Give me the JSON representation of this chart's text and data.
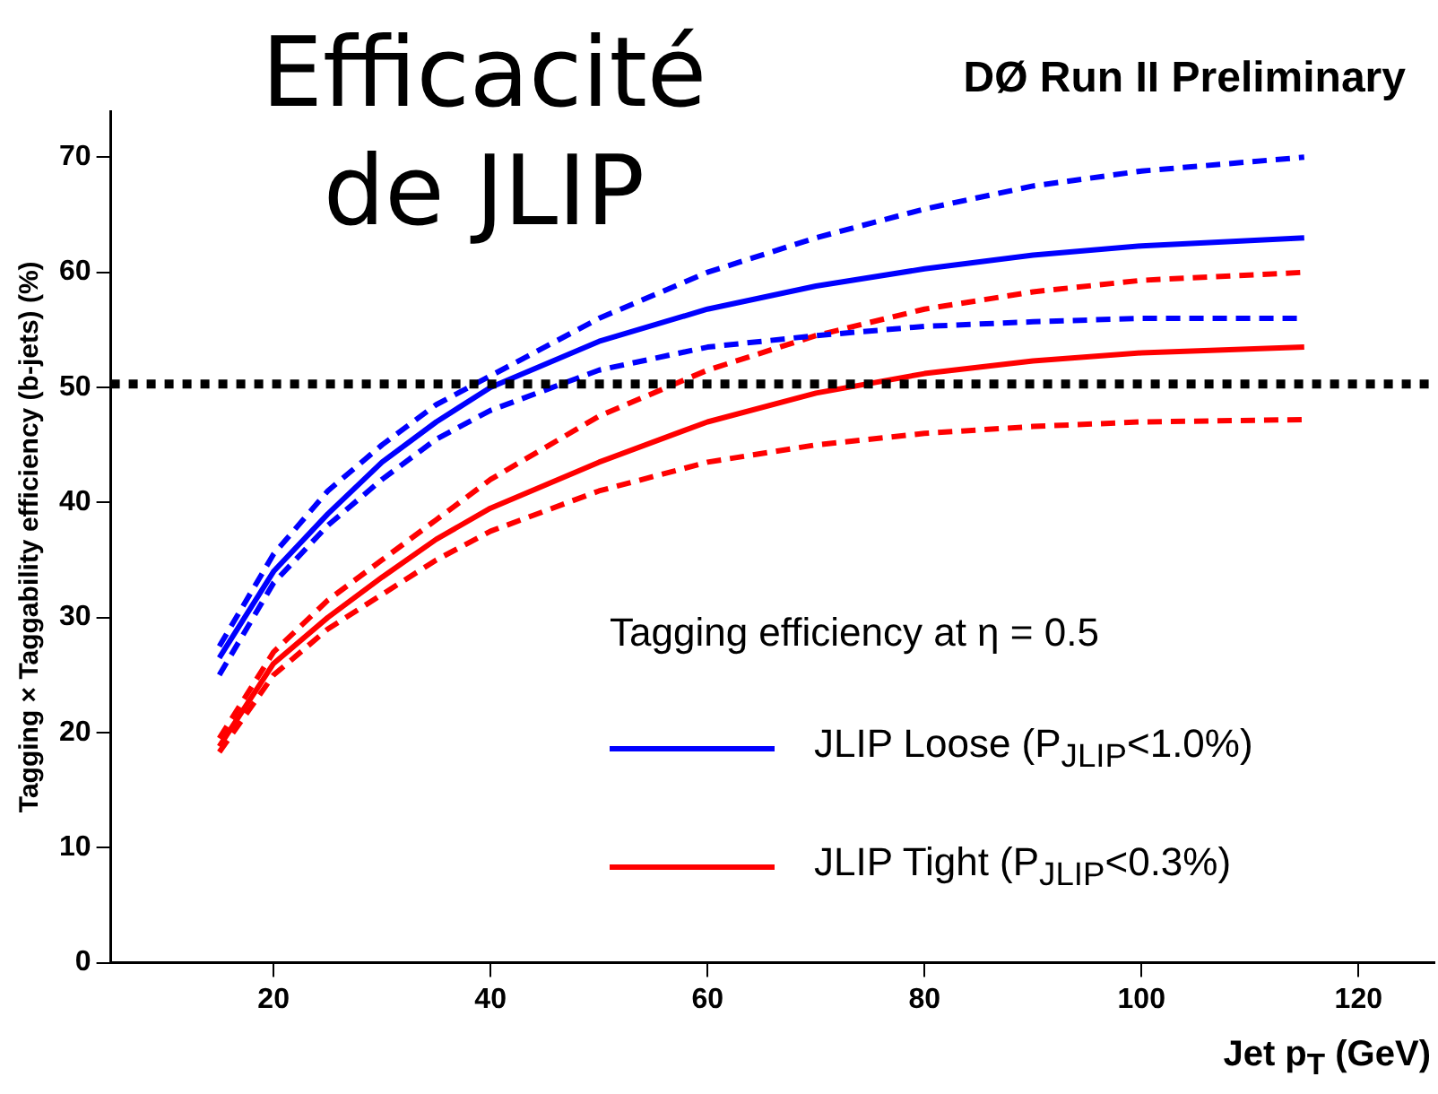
{
  "chart_data": {
    "type": "line",
    "title": "DØ Run II Preliminary",
    "annotations": [
      "Efficacité de JLIP"
    ],
    "xlabel": "Jet p$_{T}$ (GeV)",
    "ylabel": "Tagging × Taggability efficiency (b-jets) (%)",
    "legend_title": "Tagging efficiency at η = 0.5",
    "legend": "bottom right",
    "grid": false,
    "marker": "none",
    "xlim": [
      5,
      127
    ],
    "xticks": [
      20,
      40,
      60,
      80,
      100,
      120
    ],
    "ylim": [
      0,
      74
    ],
    "yticks": [
      0,
      10,
      20,
      30,
      40,
      50,
      60,
      70
    ],
    "x": [
      15,
      20,
      25,
      30,
      35,
      40,
      50,
      60,
      70,
      80,
      90,
      100,
      115
    ],
    "series": [
      {
        "name": "JLIP Loose (P$_{JLIP}$<1.0%)",
        "color": "#0000ff",
        "line_style": "solid",
        "values": [
          26.5,
          34,
          39,
          43.5,
          47,
          50,
          54,
          56.8,
          58.8,
          60.3,
          61.5,
          62.3,
          63
        ]
      },
      {
        "color": "#0000ff",
        "line_style": "dashed",
        "values": [
          27.5,
          35.5,
          41,
          45,
          48.5,
          51,
          56,
          60,
          63,
          65.5,
          67.5,
          68.8,
          70
        ]
      },
      {
        "color": "#0000ff",
        "line_style": "dashed",
        "values": [
          25,
          33,
          38,
          42,
          45.5,
          48,
          51.5,
          53.5,
          54.5,
          55.3,
          55.7,
          56,
          56
        ]
      },
      {
        "name": "JLIP Tight (P$_{JLIP}$<0.3%)",
        "color": "#ff0000",
        "line_style": "solid",
        "values": [
          18.8,
          26,
          30,
          33.5,
          36.8,
          39.5,
          43.5,
          47,
          49.5,
          51.2,
          52.3,
          53,
          53.5
        ]
      },
      {
        "color": "#ff0000",
        "line_style": "dashed",
        "values": [
          19.5,
          27,
          31.5,
          35,
          38.5,
          42,
          47.5,
          51.5,
          54.5,
          56.8,
          58.3,
          59.3,
          60
        ]
      },
      {
        "color": "#ff0000",
        "line_style": "dashed",
        "values": [
          18.3,
          25,
          29,
          32,
          35,
          37.5,
          41,
          43.5,
          45,
          46,
          46.6,
          47,
          47.2
        ]
      }
    ],
    "ref_lines": [
      {
        "axis": "y",
        "value": 50.3,
        "color": "#000000",
        "line_style": "dotted"
      }
    ]
  }
}
